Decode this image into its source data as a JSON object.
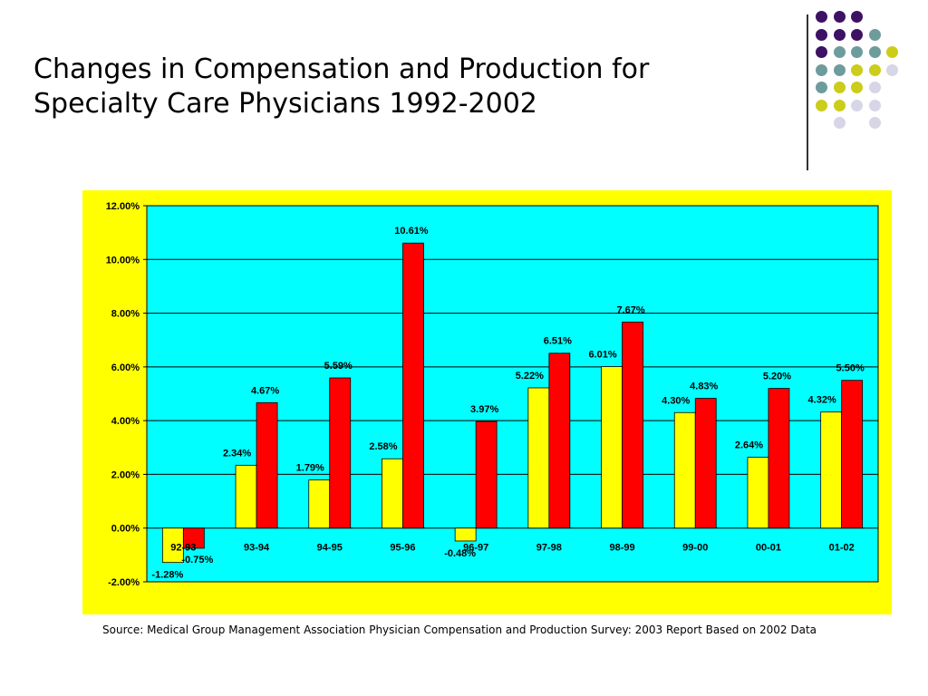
{
  "slide": {
    "title": "Changes in Compensation and Production for\nSpecialty Care Physicians 1992-2002",
    "source": "Source: Medical Group Management Association Physician Compensation and Production Survey: 2003 Report Based on 2002 Data"
  },
  "decoration": {
    "dot_rows": [
      [
        "purple",
        "purple",
        "purple",
        null,
        null
      ],
      [
        "purple",
        "purple",
        "purple",
        "teal",
        null
      ],
      [
        "purple",
        "teal",
        "teal",
        "teal",
        "olive"
      ],
      [
        "teal",
        "teal",
        "olive",
        "olive",
        "lavender"
      ],
      [
        "teal",
        "olive",
        "olive",
        "lavender",
        null
      ],
      [
        "olive",
        "olive",
        "lavender",
        "lavender",
        null
      ],
      [
        null,
        "lavender",
        null,
        "lavender",
        null
      ]
    ],
    "dot_colors": {
      "purple": "#3d1163",
      "teal": "#6e9c9c",
      "olive": "#cccc1a",
      "lavender": "#d6d6e6"
    }
  },
  "chart_data": {
    "type": "bar",
    "categories": [
      "92-93",
      "93-94",
      "94-95",
      "95-96",
      "96-97",
      "97-98",
      "98-99",
      "99-00",
      "00-01",
      "01-02"
    ],
    "series": [
      {
        "color": "#ffff00",
        "values": [
          -1.28,
          2.34,
          1.79,
          2.58,
          -0.48,
          5.22,
          6.01,
          4.3,
          2.64,
          4.32
        ],
        "labels": [
          "-1.28%",
          "2.34%",
          "1.79%",
          "2.58%",
          "-0.48%",
          "5.22%",
          "6.01%",
          "4.30%",
          "2.64%",
          "4.32%"
        ]
      },
      {
        "color": "#ff0000",
        "values": [
          -0.75,
          4.67,
          5.59,
          10.61,
          3.97,
          6.51,
          7.67,
          4.83,
          5.2,
          5.5
        ],
        "labels": [
          "-0.75%",
          "4.67%",
          "5.59%",
          "10.61%",
          "3.97%",
          "6.51%",
          "7.67%",
          "4.83%",
          "5.20%",
          "5.50%"
        ]
      }
    ],
    "y_ticks": [
      "12.00%",
      "10.00%",
      "8.00%",
      "6.00%",
      "4.00%",
      "2.00%",
      "0.00%",
      "-2.00%"
    ],
    "y_tick_values": [
      12,
      10,
      8,
      6,
      4,
      2,
      0,
      -2
    ],
    "ylim": [
      -2,
      12
    ],
    "grid": true,
    "legend": "none",
    "colors": {
      "frame": "#ffff00",
      "plot_area": "#00ffff"
    }
  }
}
